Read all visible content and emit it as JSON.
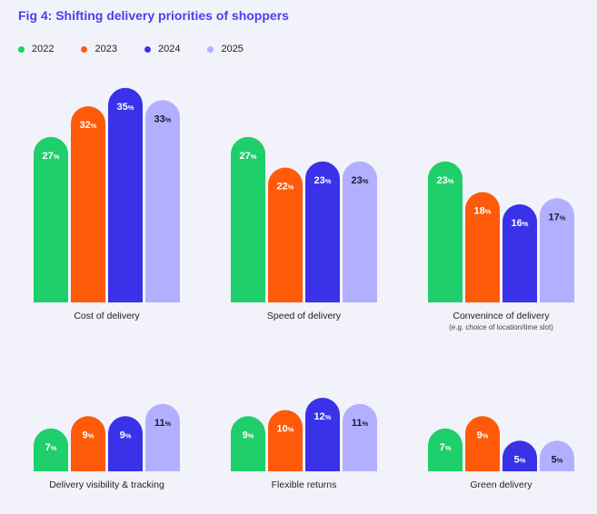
{
  "chart_data": {
    "type": "bar",
    "title": "Fig 4: Shifting delivery priorities of shoppers",
    "unit": "%",
    "series_names": [
      "2022",
      "2023",
      "2024",
      "2025"
    ],
    "colors": [
      "#1fcf6b",
      "#ff5a0a",
      "#3a32e8",
      "#b3afff"
    ],
    "label_colors": [
      "#ffffff",
      "#ffffff",
      "#ffffff",
      "#1a1a3a"
    ],
    "groups": [
      {
        "label": "Cost of delivery",
        "sublabel": "",
        "values": [
          27,
          32,
          35,
          33
        ]
      },
      {
        "label": "Speed of delivery",
        "sublabel": "",
        "values": [
          27,
          22,
          23,
          23
        ]
      },
      {
        "label": "Convenince of delivery",
        "sublabel": "(e.g. choice of location/time slot)",
        "values": [
          23,
          18,
          16,
          17
        ]
      },
      {
        "label": "Delivery visibility & tracking",
        "sublabel": "",
        "values": [
          7,
          9,
          9,
          11
        ]
      },
      {
        "label": "Flexible returns",
        "sublabel": "",
        "values": [
          9,
          10,
          12,
          11
        ]
      },
      {
        "label": "Green delivery",
        "sublabel": "",
        "values": [
          7,
          9,
          5,
          5
        ]
      }
    ]
  }
}
